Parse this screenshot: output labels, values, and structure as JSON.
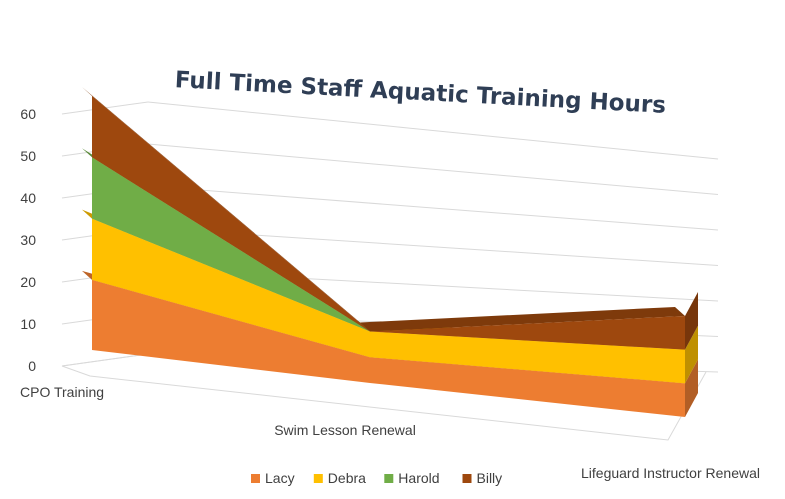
{
  "chart_data": {
    "type": "area",
    "title": "Full Time Staff Aquatic Training Hours",
    "categories": [
      "CPO Training",
      "Swim Lesson Renewal",
      "Lifeguard Instructor Renewal"
    ],
    "y_ticks": [
      "0",
      "10",
      "20",
      "30",
      "40",
      "50",
      "60"
    ],
    "ylim": [
      0,
      60
    ],
    "stacked": true,
    "three_d": true,
    "legend_position": "bottom",
    "grid": true,
    "series": [
      {
        "name": "Lacy",
        "values": [
          16,
          6,
          8
        ],
        "color": "#ED7D31"
      },
      {
        "name": "Debra",
        "values": [
          14,
          6,
          8
        ],
        "color": "#FFC000"
      },
      {
        "name": "Harold",
        "values": [
          14,
          0,
          0
        ],
        "color": "#70AD47"
      },
      {
        "name": "Billy",
        "values": [
          14,
          0,
          8
        ],
        "color": "#9E480E"
      }
    ]
  }
}
